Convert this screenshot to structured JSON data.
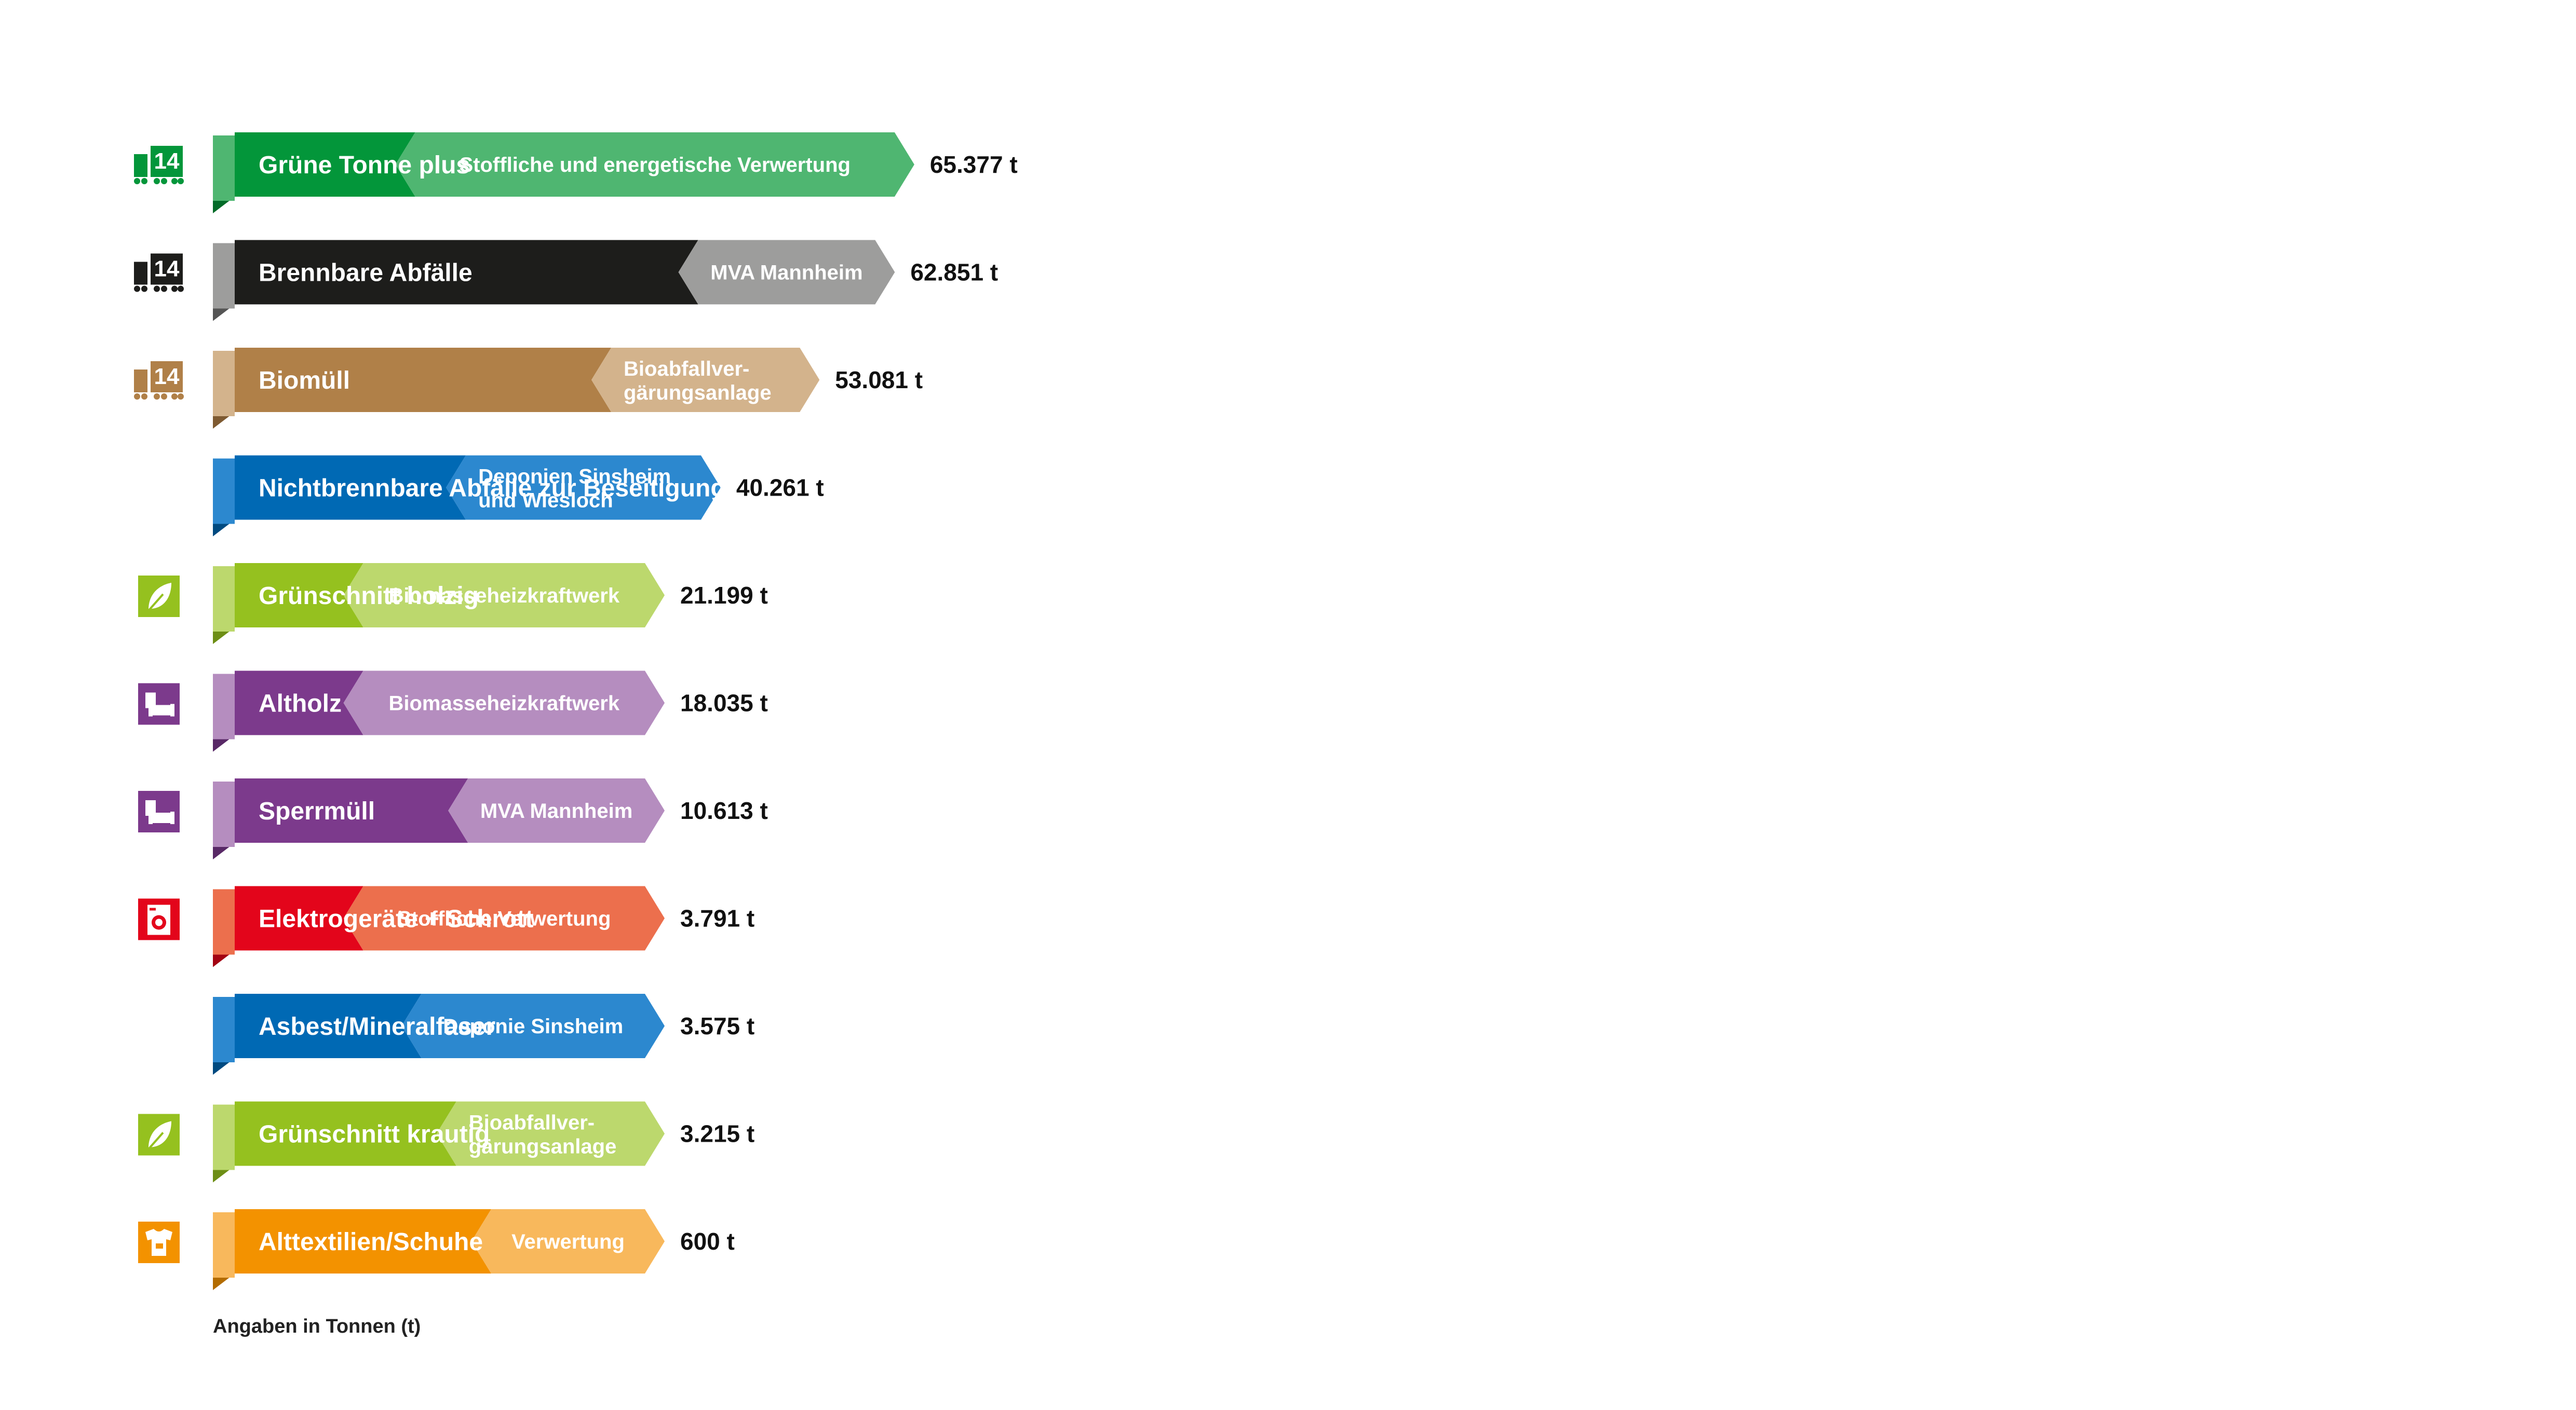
{
  "chart_data": {
    "type": "bar",
    "unit": "t",
    "note": "Angaben in Tonnen (t)",
    "rows": [
      {
        "category": "Grüne Tonne plus",
        "destination": [
          "Stoffliche und energetische Verwertung"
        ],
        "value": 65377,
        "value_label": "65.377 t",
        "icon": "bin-14-icon",
        "color": "#03963a",
        "color_light": "#4fb671",
        "color_dark": "#026b28"
      },
      {
        "category": "Brennbare Abfälle",
        "destination": [
          "MVA Mannheim"
        ],
        "value": 62851,
        "value_label": "62.851 t",
        "icon": "bin-14-icon",
        "color": "#1d1d1b",
        "color_light": "#9d9d9c",
        "color_dark": "#555555"
      },
      {
        "category": "Biomüll",
        "destination": [
          "Bioabfallver-",
          "gärungsanlage"
        ],
        "value": 53081,
        "value_label": "53.081 t",
        "icon": "bin-14-icon",
        "color": "#b08048",
        "color_light": "#d3b38c",
        "color_dark": "#7e5a31"
      },
      {
        "category": "Nichtbrennbare Abfälle zur Beseitigung",
        "destination": [
          "Deponien Sinsheim",
          "und Wiesloch"
        ],
        "value": 40261,
        "value_label": "40.261 t",
        "icon": "",
        "color": "#0069b4",
        "color_light": "#2c88cf",
        "color_dark": "#004a80"
      },
      {
        "category": "Grünschnitt holzig",
        "destination": [
          "Biomasseheizkraftwerk"
        ],
        "value": 21199,
        "value_label": "21.199 t",
        "icon": "leaf-icon",
        "color": "#95c11f",
        "color_light": "#bcd86d",
        "color_dark": "#6d8e15"
      },
      {
        "category": "Altholz",
        "destination": [
          "Biomasseheizkraftwerk"
        ],
        "value": 18035,
        "value_label": "18.035 t",
        "icon": "furniture-icon",
        "color": "#7c3a8c",
        "color_light": "#b58dbf",
        "color_dark": "#582866"
      },
      {
        "category": "Sperrmüll",
        "destination": [
          "MVA Mannheim"
        ],
        "value": 10613,
        "value_label": "10.613 t",
        "icon": "furniture-icon",
        "color": "#7c3a8c",
        "color_light": "#b58dbf",
        "color_dark": "#582866"
      },
      {
        "category": "Elektrogeräte + Schrott",
        "destination": [
          "Stoffliche Verwertung"
        ],
        "value": 3791,
        "value_label": "3.791 t",
        "icon": "washing-machine-icon",
        "color": "#e3051b",
        "color_light": "#ec6f4d",
        "color_dark": "#a30312"
      },
      {
        "category": "Asbest/Mineralfaser",
        "destination": [
          "Deponie Sinsheim"
        ],
        "value": 3575,
        "value_label": "3.575 t",
        "icon": "",
        "color": "#0069b4",
        "color_light": "#2c88cf",
        "color_dark": "#004a80"
      },
      {
        "category": "Grünschnitt krautig",
        "destination": [
          "Bioabfallver-",
          "gärungsanlage"
        ],
        "value": 3215,
        "value_label": "3.215 t",
        "icon": "leaf-icon",
        "color": "#95c11f",
        "color_light": "#bcd86d",
        "color_dark": "#6d8e15"
      },
      {
        "category": "Alttextilien/Schuhe",
        "destination": [
          "Verwertung"
        ],
        "value": 600,
        "value_label": "600 t",
        "icon": "clothing-icon",
        "color": "#f39200",
        "color_light": "#f8b85c",
        "color_dark": "#b36c00"
      }
    ]
  }
}
